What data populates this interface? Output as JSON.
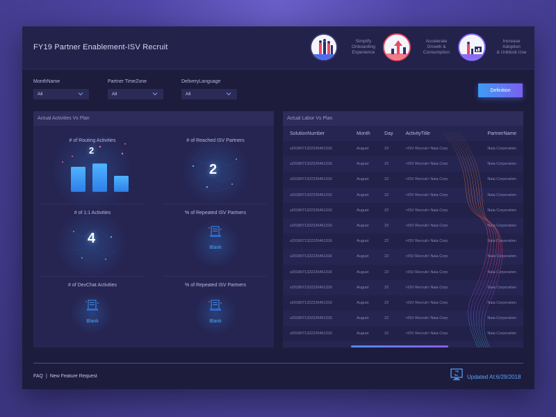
{
  "header": {
    "title": "FY19 Partner Enablement-ISV Recruit",
    "features": [
      {
        "text": "Simplify\nOnboarding\nExperience",
        "icon": "team-people-icon"
      },
      {
        "text": "Accelerate\nGrowth &\nConsumption",
        "icon": "growth-arrow-icon"
      },
      {
        "text": "Increase\nAdoption\n& Unblock Use",
        "icon": "adoption-chart-icon"
      }
    ]
  },
  "filters": {
    "month": {
      "label": "MonthName",
      "value": "All"
    },
    "timezone": {
      "label": "Partner TimeZone",
      "value": "All"
    },
    "language": {
      "label": "DeliveryLanguage",
      "value": "All"
    },
    "definition_button": "Definition"
  },
  "left_panel": {
    "title": "Actual Activities Vs Plan",
    "tiles": [
      {
        "title": "# of Routing Activities",
        "value": "2",
        "bars": [
          0.75,
          0.85,
          0.48
        ]
      },
      {
        "title": "# of Reached ISV Partners",
        "value": "2"
      },
      {
        "title": "# of 1:1 Activities",
        "value": "4"
      },
      {
        "title": "% of Repeated ISV Partners",
        "value": "Blank"
      },
      {
        "title": "# of DevChat Activities",
        "value": "Blank"
      },
      {
        "title": "% of Repeated ISV Partners",
        "value": "Blank"
      }
    ]
  },
  "right_panel": {
    "title": "Actual Labor Vs Plan",
    "columns": [
      "SolutionNumber",
      "Month",
      "Day",
      "ActivityTitle",
      "PartnerName"
    ],
    "rows": [
      [
        "s2018071322226461316",
        "August",
        "22",
        "<ISV Recruit>  Naia Corp",
        "Naia Corporation"
      ],
      [
        "s2018071322226461316",
        "August",
        "22",
        "<ISV Recruit>  Naia Corp",
        "Naia Corporation"
      ],
      [
        "s2018071322226461316",
        "August",
        "22",
        "<ISV Recruit>  Naia Corp",
        "Naia Corporation"
      ],
      [
        "s2018071322226461316",
        "August",
        "22",
        "<ISV Recruit>  Naia Corp",
        "Naia Corporation"
      ],
      [
        "s2018071322226461316",
        "August",
        "22",
        "<ISV Recruit>  Naia Corp",
        "Naia Corporation"
      ],
      [
        "s2018071322226461316",
        "August",
        "22",
        "<ISV Recruit>  Naia Corp",
        "Naia Corporation"
      ],
      [
        "s2018071322226461316",
        "August",
        "22",
        "<ISV Recruit>  Naia Corp",
        "Naia Corporation"
      ],
      [
        "s2018071322226461316",
        "August",
        "22",
        "<ISV Recruit>  Naia Corp",
        "Naia Corporation"
      ],
      [
        "s2018071322226461316",
        "August",
        "22",
        "<ISV Recruit>  Naia Corp",
        "Naia Corporation"
      ],
      [
        "s2018071322226461316",
        "August",
        "22",
        "<ISV Recruit>  Naia Corp",
        "Naia Corporation"
      ],
      [
        "s2018071322226461316",
        "August",
        "22",
        "<ISV Recruit>  Naia Corp",
        "Naia Corporation"
      ],
      [
        "s2018071322226461316",
        "August",
        "22",
        "<ISV Recruit>  Naia Corp",
        "Naia Corporation"
      ],
      [
        "s2018071322226461316",
        "August",
        "22",
        "<ISV Recruit>  Naia Corp",
        "Naia Corporation"
      ]
    ]
  },
  "footer": {
    "faq": "FAQ",
    "separator": "|",
    "feature_request": "New Feature Request",
    "updated": "Updated At:6/29/2018"
  },
  "colors": {
    "background": "#4e46a5",
    "panel": "#262552",
    "accent_blue": "#3d9cf2",
    "accent_purple": "#7b5ff0"
  }
}
